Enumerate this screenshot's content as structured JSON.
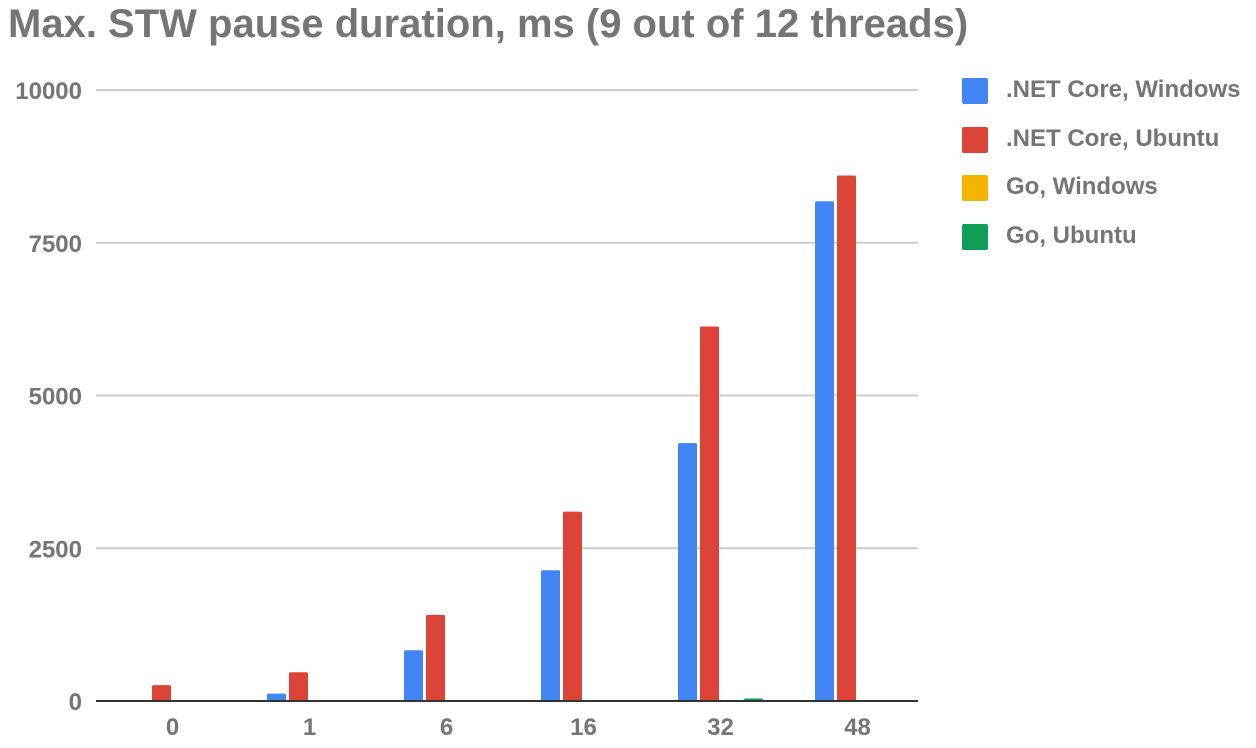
{
  "chart_data": {
    "type": "bar",
    "title": "Max. STW pause duration, ms (9 out of 12 threads)",
    "xlabel": "",
    "ylabel": "",
    "categories": [
      "0",
      "1",
      "6",
      "16",
      "32",
      "48"
    ],
    "ylim": [
      0,
      10000
    ],
    "yticks": [
      0,
      2500,
      5000,
      7500,
      10000
    ],
    "yticks_labels": [
      "0",
      "2500",
      "5000",
      "7500",
      "10000"
    ],
    "grid": true,
    "legend_position": "right",
    "series": [
      {
        "name": ".NET Core, Windows",
        "color": "#4285f4",
        "values": [
          0,
          120,
          830,
          2140,
          4220,
          8180
        ]
      },
      {
        "name": ".NET Core, Ubuntu",
        "color": "#db4437",
        "values": [
          260,
          470,
          1410,
          3100,
          6130,
          8600
        ]
      },
      {
        "name": "Go, Windows",
        "color": "#f4b400",
        "values": [
          0,
          0,
          0,
          0,
          0,
          0
        ]
      },
      {
        "name": "Go, Ubuntu",
        "color": "#0f9d58",
        "values": [
          0,
          0,
          0,
          0,
          40,
          0
        ]
      }
    ]
  }
}
